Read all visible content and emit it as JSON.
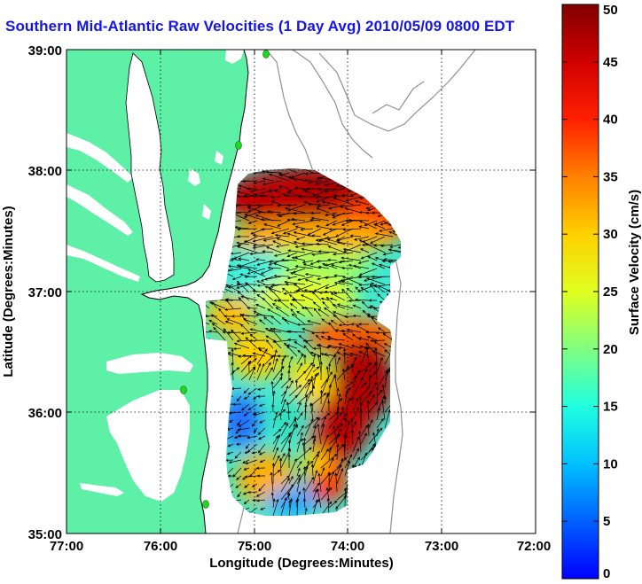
{
  "title": "Southern Mid-Atlantic Raw Velocities (1 Day Avg) 2010/05/09 0800 EDT",
  "chart_data": {
    "type": "heatmap",
    "subtype": "map with surface current vectors",
    "xlabel": "Longitude (Degrees:Minutes)",
    "ylabel": "Latitude (Degrees:Minutes)",
    "colorbar_label": "Surface Velocity (cm/s)",
    "x_ticks": [
      "77:00",
      "76:00",
      "75:00",
      "74:00",
      "73:00",
      "72:00"
    ],
    "y_ticks": [
      "39:00",
      "38:00",
      "37:00",
      "36:00",
      "35:00"
    ],
    "colorbar_ticks": [
      "50",
      "45",
      "40",
      "35",
      "30",
      "25",
      "20",
      "15",
      "10",
      "5",
      "0"
    ],
    "xlim_deg_west": [
      77,
      72
    ],
    "ylim_deg_north": [
      35,
      39
    ],
    "clim": [
      0,
      50
    ],
    "colormap": "jet",
    "grid": "dotted",
    "land_color": "#5ff0a8",
    "bathymetry_color": "#909090",
    "station_color": "#21d621",
    "regions_approx": [
      {
        "area": "north offshore band near 37:45",
        "speed_cm_s": "40-50"
      },
      {
        "area": "central band near 37:15",
        "speed_cm_s": "20-30"
      },
      {
        "area": "near Chesapeake mouth 36:45",
        "speed_cm_s": "25-35"
      },
      {
        "area": "southeast offshore near 36:15 / 73:45",
        "speed_cm_s": "40-50"
      },
      {
        "area": "nearshore south 35:45 / 75:15",
        "speed_cm_s": "5-15"
      },
      {
        "area": "southern edge 35:20 / 74:30",
        "speed_cm_s": "0-10"
      }
    ]
  }
}
